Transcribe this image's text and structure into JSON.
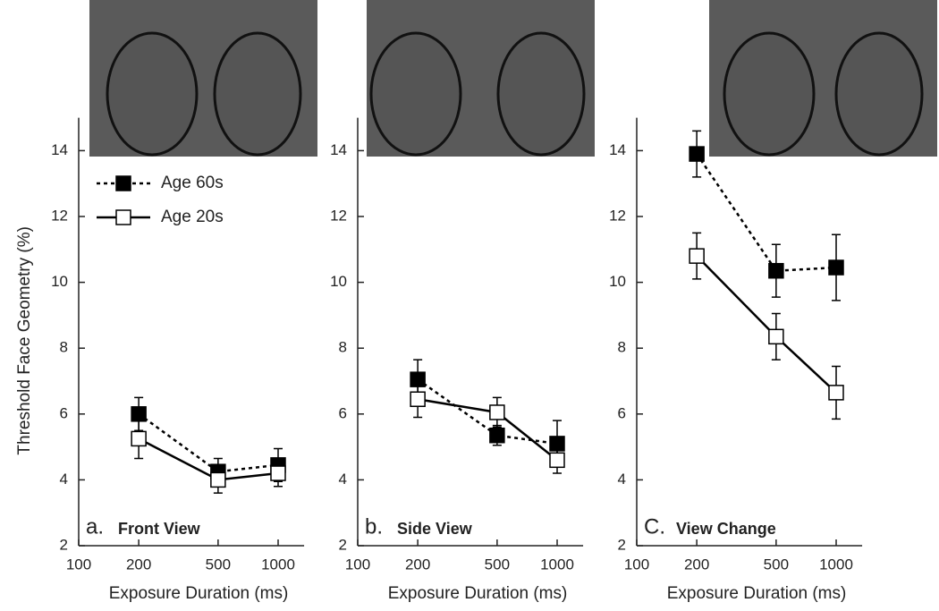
{
  "chart_data": [
    {
      "type": "line",
      "panel_letter": "a.",
      "title": "Front View",
      "y_label": "Threshold Face Geometry (%)",
      "x_label": "Exposure Duration (ms)",
      "log_x": true,
      "xlim": [
        100,
        1350
      ],
      "xticks": [
        100,
        200,
        500,
        1000
      ],
      "ylim": [
        2,
        15
      ],
      "yticks": [
        2,
        4,
        6,
        8,
        10,
        12,
        14
      ],
      "legend": "upper left",
      "x": [
        200,
        500,
        1000
      ],
      "series": [
        {
          "name": "Age 60s",
          "color": "#000000",
          "marker_fill": "#000000",
          "dashed": true,
          "values": [
            6.0,
            4.25,
            4.45
          ],
          "errors": [
            0.5,
            0.4,
            0.5
          ]
        },
        {
          "name": "Age 20s",
          "color": "#000000",
          "marker_fill": "#ffffff",
          "dashed": false,
          "values": [
            5.25,
            4.0,
            4.2
          ],
          "errors": [
            0.6,
            0.4,
            0.4
          ]
        }
      ]
    },
    {
      "type": "line",
      "panel_letter": "b.",
      "title": "Side View",
      "x_label": "Exposure Duration (ms)",
      "log_x": true,
      "xlim": [
        100,
        1350
      ],
      "xticks": [
        100,
        200,
        500,
        1000
      ],
      "ylim": [
        2,
        15
      ],
      "yticks": [
        2,
        4,
        6,
        8,
        10,
        12,
        14
      ],
      "x": [
        200,
        500,
        1000
      ],
      "series": [
        {
          "color": "#000000",
          "marker_fill": "#000000",
          "dashed": true,
          "values": [
            7.05,
            5.35,
            5.1
          ],
          "errors": [
            0.6,
            0.3,
            0.7
          ]
        },
        {
          "color": "#000000",
          "marker_fill": "#ffffff",
          "dashed": false,
          "values": [
            6.45,
            6.05,
            4.6
          ],
          "errors": [
            0.55,
            0.45,
            0.4
          ]
        }
      ]
    },
    {
      "type": "line",
      "panel_letter": "C.",
      "title": "View Change",
      "x_label": "Exposure Duration (ms)",
      "log_x": true,
      "xlim": [
        100,
        1350
      ],
      "xticks": [
        100,
        200,
        500,
        1000
      ],
      "ylim": [
        2,
        15
      ],
      "yticks": [
        2,
        4,
        6,
        8,
        10,
        12,
        14
      ],
      "x": [
        200,
        500,
        1000
      ],
      "series": [
        {
          "color": "#000000",
          "marker_fill": "#000000",
          "dashed": true,
          "values": [
            13.9,
            10.35,
            10.45
          ],
          "errors": [
            0.7,
            0.8,
            1.0
          ]
        },
        {
          "color": "#000000",
          "marker_fill": "#ffffff",
          "dashed": false,
          "values": [
            10.8,
            8.35,
            6.65
          ],
          "errors": [
            0.7,
            0.7,
            0.8
          ]
        }
      ]
    }
  ]
}
